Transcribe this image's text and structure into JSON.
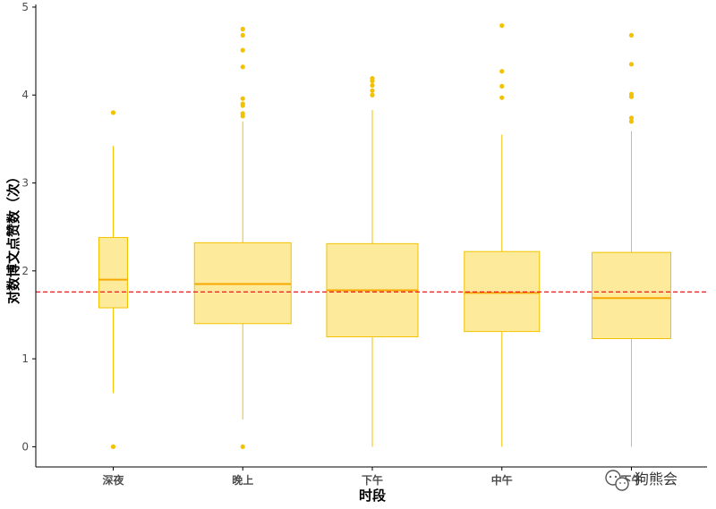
{
  "chart_data": {
    "type": "boxplot",
    "xlabel": "时段",
    "ylabel": "对数博文点赞数（次）",
    "ylim": [
      -0.23,
      5.03
    ],
    "yticks": [
      0,
      1,
      2,
      3,
      4,
      5
    ],
    "reference_line": {
      "y": 1.76,
      "style": "dashed",
      "color": "#e41a1c"
    },
    "colors": {
      "box_fill": "#fdeb9b",
      "box_stroke": "#f2c200",
      "median": "#f7a800",
      "outlier": "#f2c200",
      "axis": "#000000"
    },
    "grid": false,
    "categories": [
      "深夜",
      "晚上",
      "下午",
      "中午",
      "下午"
    ],
    "boxes": [
      {
        "category": "深夜",
        "whisker_low": 0.61,
        "q1": 1.58,
        "median": 1.9,
        "q3": 2.38,
        "whisker_high": 3.42,
        "outliers": [
          3.8,
          0.0
        ]
      },
      {
        "category": "晚上",
        "whisker_low": 0.31,
        "q1": 1.4,
        "median": 1.85,
        "q3": 2.32,
        "whisker_high": 3.7,
        "outliers": [
          4.75,
          4.68,
          4.51,
          4.32,
          3.96,
          3.9,
          3.88,
          3.79,
          3.76,
          0.0
        ]
      },
      {
        "category": "下午",
        "whisker_low": 0.0,
        "q1": 1.25,
        "median": 1.78,
        "q3": 2.31,
        "whisker_high": 3.83,
        "outliers": [
          4.19,
          4.16,
          4.11,
          4.05,
          4.0
        ]
      },
      {
        "category": "中午",
        "whisker_low": 0.0,
        "q1": 1.31,
        "median": 1.75,
        "q3": 2.22,
        "whisker_high": 3.55,
        "outliers": [
          4.79,
          4.27,
          4.1,
          3.97
        ]
      },
      {
        "category": "下午",
        "whisker_low": 0.0,
        "q1": 1.23,
        "median": 1.69,
        "q3": 2.21,
        "whisker_high": 3.59,
        "outliers": [
          4.68,
          4.35,
          4.01,
          3.98,
          3.74,
          3.7
        ]
      }
    ]
  },
  "watermark": {
    "icon": "wechat-icon",
    "text": "狗熊会"
  }
}
